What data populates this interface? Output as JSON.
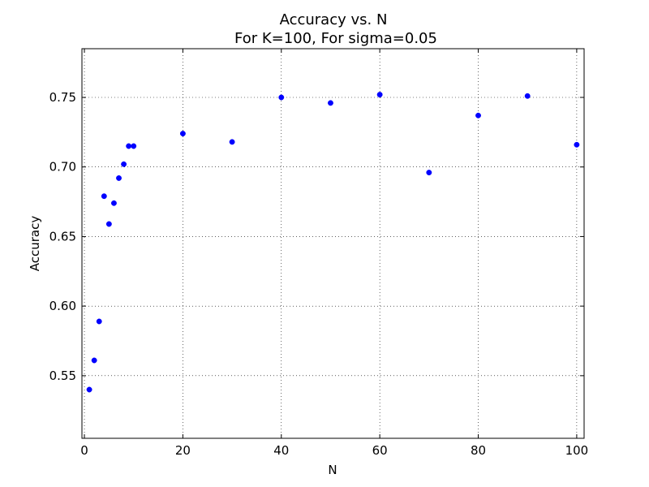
{
  "chart_data": {
    "type": "scatter",
    "title": "Accuracy vs. N",
    "subtitle": "For K=100, For sigma=0.05",
    "xlabel": "N",
    "ylabel": "Accuracy",
    "xlim": [
      -0.5,
      101.5
    ],
    "ylim": [
      0.505,
      0.785
    ],
    "xticks": [
      0,
      20,
      40,
      60,
      80,
      100
    ],
    "xtick_labels": [
      "0",
      "20",
      "40",
      "60",
      "80",
      "100"
    ],
    "yticks": [
      0.55,
      0.6,
      0.65,
      0.7,
      0.75
    ],
    "ytick_labels": [
      "0.55",
      "0.60",
      "0.65",
      "0.70",
      "0.75"
    ],
    "grid": true,
    "marker_color": "#0000ff",
    "series": [
      {
        "x": [
          1,
          2,
          3,
          4,
          5,
          6,
          7,
          8,
          9,
          10,
          20,
          30,
          40,
          50,
          60,
          70,
          80,
          90,
          100
        ],
        "y": [
          0.54,
          0.561,
          0.589,
          0.679,
          0.659,
          0.674,
          0.692,
          0.702,
          0.715,
          0.715,
          0.724,
          0.718,
          0.75,
          0.746,
          0.752,
          0.696,
          0.737,
          0.751,
          0.716
        ]
      }
    ]
  }
}
